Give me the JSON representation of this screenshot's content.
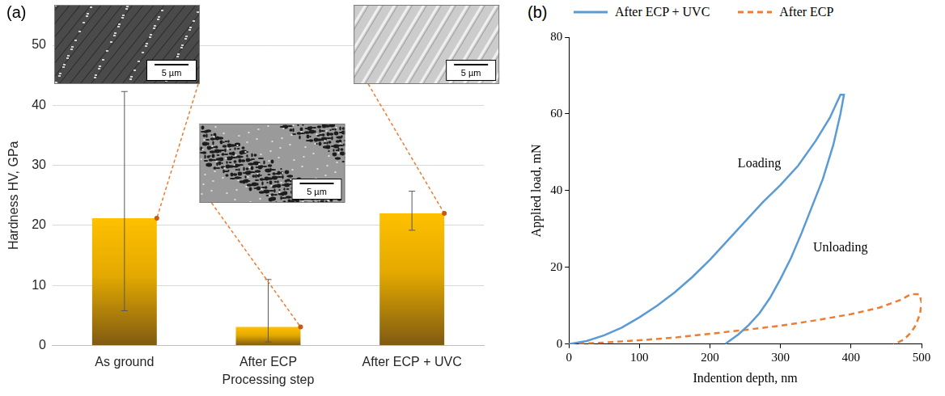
{
  "chart_data": [
    {
      "panel": "(a)",
      "type": "bar",
      "categories": [
        "As ground",
        "After ECP",
        "After ECP + UVC"
      ],
      "values": [
        21.2,
        3.1,
        22.0
      ],
      "error_range": [
        [
          5.8,
          42.3
        ],
        [
          0.6,
          11.0
        ],
        [
          19.2,
          25.7
        ]
      ],
      "color": "#ffc000",
      "x_label": "Processing step",
      "y_label": "Hardness HV, GPa",
      "ylim": [
        0,
        50
      ],
      "yticks": [
        0,
        10,
        20,
        30,
        40,
        50
      ],
      "grid": true,
      "insets": [
        {
          "category": "As ground",
          "scale_bar": "5 µm"
        },
        {
          "category": "After ECP",
          "scale_bar": "5 µm"
        },
        {
          "category": "After ECP + UVC",
          "scale_bar": "5 µm"
        }
      ]
    },
    {
      "panel": "(b)",
      "type": "line",
      "x_label": "Indention depth, nm",
      "y_label": "Applied load, mN",
      "xlim": [
        0,
        500
      ],
      "xticks": [
        0,
        100,
        200,
        300,
        400,
        500
      ],
      "ylim": [
        0,
        80
      ],
      "yticks": [
        0,
        20,
        40,
        60,
        80
      ],
      "grid": false,
      "legend": "top",
      "series": [
        {
          "name": "After ECP + UVC",
          "color": "#5b9bd5",
          "line_style": "solid",
          "x": [
            0,
            25,
            50,
            75,
            100,
            125,
            150,
            175,
            200,
            225,
            250,
            275,
            300,
            325,
            350,
            370,
            385,
            390,
            385,
            375,
            360,
            345,
            330,
            315,
            300,
            285,
            270,
            255,
            240,
            225,
            222
          ],
          "values": [
            0,
            0.8,
            2.3,
            4.3,
            7,
            10,
            13.5,
            17.5,
            22,
            27,
            32,
            37,
            41.5,
            46.5,
            53,
            59,
            65,
            65,
            60,
            52,
            43,
            36,
            29,
            22.5,
            17,
            12,
            8,
            5,
            2.5,
            0.5,
            0
          ]
        },
        {
          "name": "After ECP",
          "color": "#ed7d31",
          "line_style": "dashed",
          "x": [
            0,
            50,
            100,
            150,
            200,
            250,
            300,
            350,
            400,
            440,
            470,
            485,
            497,
            500,
            498,
            492,
            485,
            475,
            465,
            460
          ],
          "values": [
            0,
            0.4,
            1,
            1.7,
            2.7,
            3.7,
            4.8,
            6.2,
            7.8,
            9.5,
            11.5,
            13,
            13,
            11,
            8,
            5,
            3,
            1.2,
            0.3,
            0
          ]
        }
      ],
      "annotations": [
        {
          "text": "Loading",
          "x": 270,
          "y": 47
        },
        {
          "text": "Unloading",
          "x": 385,
          "y": 25
        }
      ]
    }
  ]
}
